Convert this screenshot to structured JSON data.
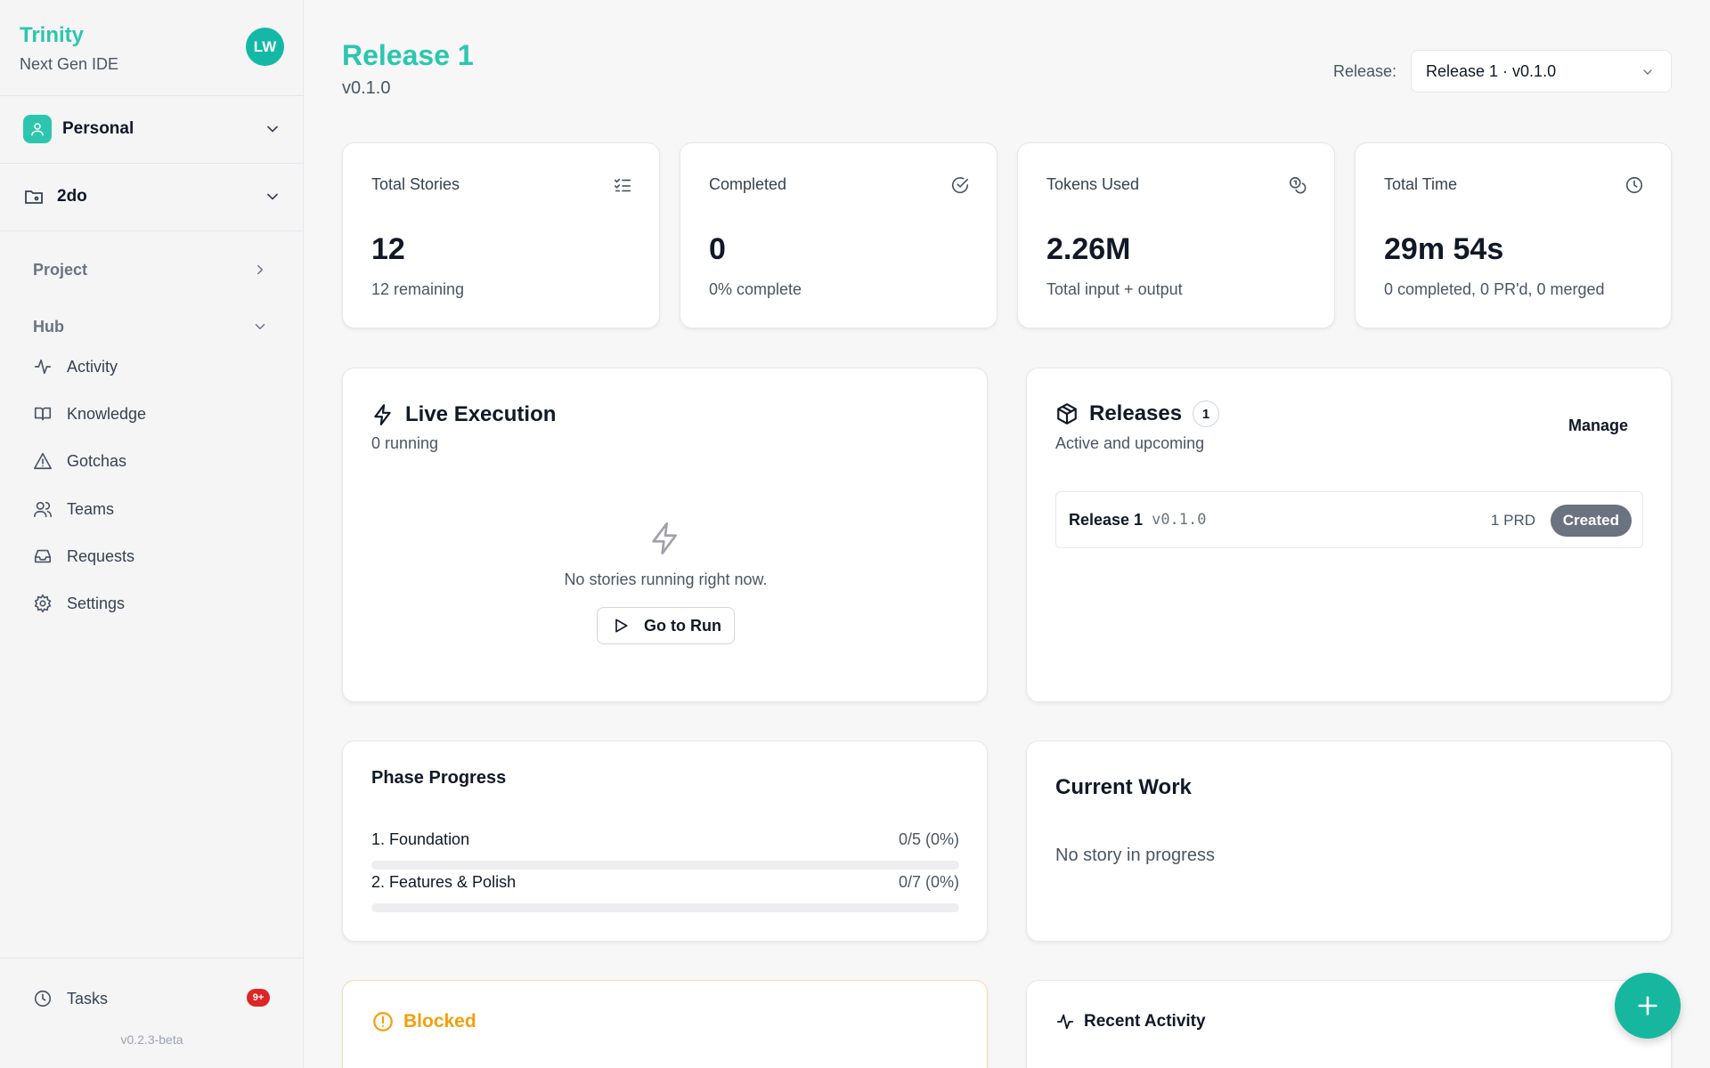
{
  "sidebar": {
    "brand": "Trinity",
    "brand_subtitle": "Next Gen IDE",
    "avatar_initials": "LW",
    "workspace": "Personal",
    "project": "2do",
    "project_section": "Project",
    "hub_section": "Hub",
    "hub_items": [
      {
        "label": "Activity",
        "icon": "activity-icon"
      },
      {
        "label": "Knowledge",
        "icon": "book-icon"
      },
      {
        "label": "Gotchas",
        "icon": "warning-triangle-icon"
      },
      {
        "label": "Teams",
        "icon": "users-icon"
      },
      {
        "label": "Requests",
        "icon": "inbox-icon"
      },
      {
        "label": "Settings",
        "icon": "gear-icon"
      }
    ],
    "tasks_label": "Tasks",
    "tasks_badge": "9+",
    "version": "v0.2.3-beta"
  },
  "header": {
    "title": "Release 1",
    "version": "v0.1.0",
    "release_label": "Release:",
    "release_selected": "Release 1 · v0.1.0"
  },
  "stats": [
    {
      "label": "Total Stories",
      "value": "12",
      "sub": "12 remaining",
      "icon": "list-checks-icon"
    },
    {
      "label": "Completed",
      "value": "0",
      "sub": "0% complete",
      "icon": "check-circle-icon"
    },
    {
      "label": "Tokens Used",
      "value": "2.26M",
      "sub": "Total input + output",
      "icon": "coins-icon"
    },
    {
      "label": "Total Time",
      "value": "29m 54s",
      "sub": "0 completed, 0 PR'd, 0 merged",
      "icon": "clock-icon"
    }
  ],
  "live_execution": {
    "title": "Live Execution",
    "subtitle": "0 running",
    "empty_text": "No stories running right now.",
    "button": "Go to Run"
  },
  "releases": {
    "title": "Releases",
    "count": "1",
    "subtitle": "Active and upcoming",
    "manage": "Manage",
    "items": [
      {
        "name": "Release 1",
        "version": "v0.1.0",
        "prd": "1 PRD",
        "status": "Created"
      }
    ]
  },
  "phase_progress": {
    "title": "Phase Progress",
    "phases": [
      {
        "name": "1. Foundation",
        "value": "0/5 (0%)",
        "progress": 0
      },
      {
        "name": "2. Features & Polish",
        "value": "0/7 (0%)",
        "progress": 0
      }
    ]
  },
  "current_work": {
    "title": "Current Work",
    "empty_text": "No story in progress"
  },
  "blocked": {
    "title": "Blocked"
  },
  "recent_activity": {
    "title": "Recent Activity"
  },
  "colors": {
    "accent": "#2cc6ae",
    "warning": "#f59e0b",
    "badge": "#dc2626"
  }
}
